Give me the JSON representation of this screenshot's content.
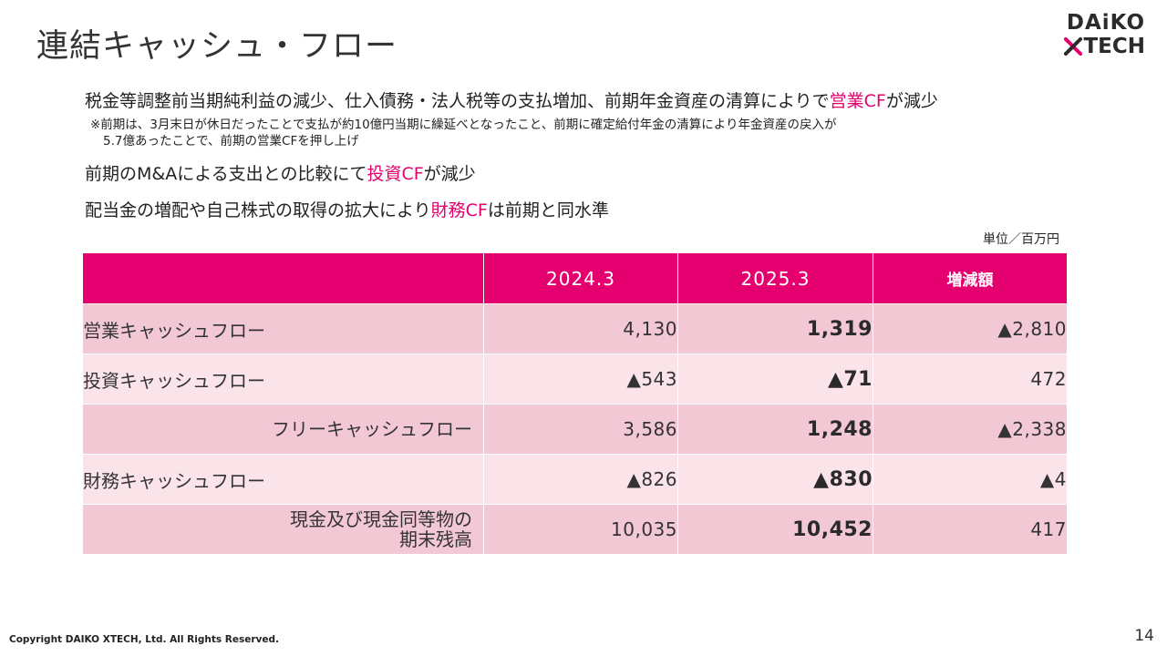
{
  "title": "連結キャッシュ・フロー",
  "logo": {
    "line1": "DAiKO",
    "line2": "TECH",
    "x_glyph": "X"
  },
  "bullets": [
    {
      "pre": "税金等調整前当期純利益の減少、仕入債務・法人税等の支払増加、前期年金資産の清算によりで",
      "highlight": "営業CF",
      "post": "が減少"
    },
    {
      "pre": "前期のM&Aによる支出との比較にて",
      "highlight": "投資CF",
      "post": "が減少"
    },
    {
      "pre": "配当金の増配や自己株式の取得の拡大により",
      "highlight": "財務CF",
      "post": "は前期と同水準"
    }
  ],
  "note": {
    "line1": "※前期は、3月末日が休日だったことで支払が約10億円当期に繰延べとなったこと、前期に確定給付年金の清算により年金資産の戻入が",
    "line2": "5.7億あったことで、前期の営業CFを押し上げ"
  },
  "unit": "単位／百万円",
  "table": {
    "headers": [
      "",
      "2024.3",
      "2025.3",
      "増減額"
    ],
    "rows": [
      {
        "label": "営業キャッシュフロー",
        "label_line2": "",
        "v2024": "4,130",
        "v2025": "1,319",
        "change": "▲2,810"
      },
      {
        "label": "投資キャッシュフロー",
        "label_line2": "",
        "v2024": "▲543",
        "v2025": "▲71",
        "change": "472"
      },
      {
        "label": "フリーキャッシュフロー",
        "label_line2": "",
        "v2024": "3,586",
        "v2025": "1,248",
        "change": "▲2,338"
      },
      {
        "label": "財務キャッシュフロー",
        "label_line2": "",
        "v2024": "▲826",
        "v2025": "▲830",
        "change": "▲4"
      },
      {
        "label": "現金及び現金同等物の",
        "label_line2": "期末残高",
        "v2024": "10,035",
        "v2025": "10,452",
        "change": "417"
      }
    ]
  },
  "footer": "Copyright DAIKO XTECH, Ltd. All Rights Reserved.",
  "page_number": "14",
  "colors": {
    "accent": "#e4006e",
    "row_dark": "#f3c8d5",
    "row_light": "#fae4ea"
  }
}
